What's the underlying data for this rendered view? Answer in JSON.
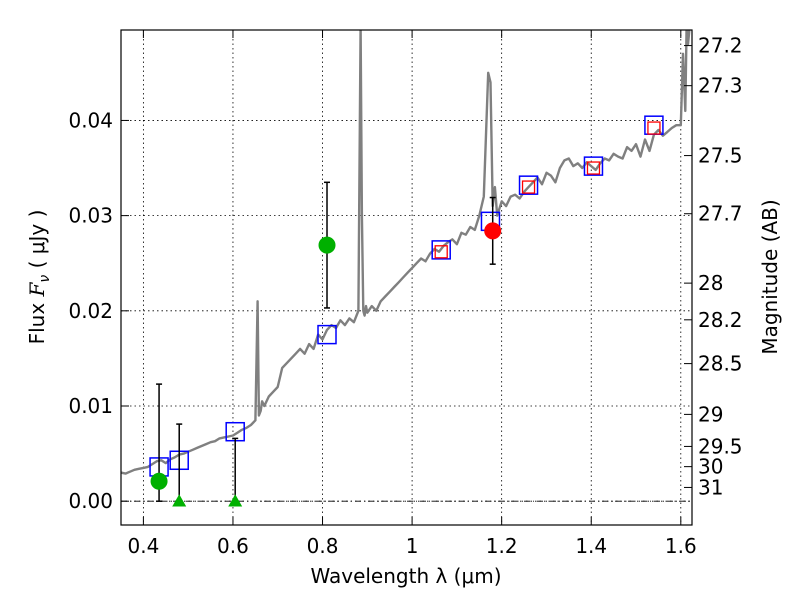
{
  "chart_data": {
    "type": "scatter",
    "title": "",
    "xlabel": "Wavelength  λ (μm)",
    "ylabel_prefix": "Flux  ",
    "ylabel_symbol": "F",
    "ylabel_sub": "ν",
    "ylabel_suffix": "  ( μJy )",
    "y2label": "Magnitude (AB)",
    "xlim": [
      0.35,
      1.625
    ],
    "ylim": [
      -0.0025,
      0.0495
    ],
    "grid": true,
    "x_ticks": [
      {
        "value": 0.4,
        "label": "0.4"
      },
      {
        "value": 0.6,
        "label": "0.6"
      },
      {
        "value": 0.8,
        "label": "0.8"
      },
      {
        "value": 1.0,
        "label": "1"
      },
      {
        "value": 1.2,
        "label": "1.2"
      },
      {
        "value": 1.4,
        "label": "1.4"
      },
      {
        "value": 1.6,
        "label": "1.6"
      }
    ],
    "y_ticks": [
      {
        "value": 0.0,
        "label": "0.00"
      },
      {
        "value": 0.01,
        "label": "0.01"
      },
      {
        "value": 0.02,
        "label": "0.02"
      },
      {
        "value": 0.03,
        "label": "0.03"
      },
      {
        "value": 0.04,
        "label": "0.04"
      }
    ],
    "magnitude_ticks": [
      {
        "mag": 27.2,
        "label": "27.2"
      },
      {
        "mag": 27.3,
        "label": "27.3"
      },
      {
        "mag": 27.5,
        "label": "27.5"
      },
      {
        "mag": 27.7,
        "label": "27.7"
      },
      {
        "mag": 28.0,
        "label": "28"
      },
      {
        "mag": 28.2,
        "label": "28.2"
      },
      {
        "mag": 28.5,
        "label": "28.5"
      },
      {
        "mag": 29.0,
        "label": "29"
      },
      {
        "mag": 29.5,
        "label": "29.5"
      },
      {
        "mag": 30.0,
        "label": "30"
      },
      {
        "mag": 31.0,
        "label": "31"
      }
    ],
    "colors": {
      "spectrum": "#808080",
      "model_squares": "#0000ff",
      "observed_squares": "#ff0000",
      "detections": "#00b000",
      "detection_red": "#ff0000",
      "error_bars": "#000000",
      "grid": "#000000",
      "zero_line": "#000000"
    },
    "series": [
      {
        "name": "spectrum",
        "type": "line",
        "x": [
          0.35,
          0.36,
          0.37,
          0.38,
          0.39,
          0.4,
          0.41,
          0.42,
          0.43,
          0.44,
          0.45,
          0.46,
          0.47,
          0.48,
          0.49,
          0.5,
          0.51,
          0.52,
          0.53,
          0.54,
          0.55,
          0.56,
          0.57,
          0.58,
          0.59,
          0.6,
          0.61,
          0.62,
          0.63,
          0.64,
          0.65,
          0.655,
          0.658,
          0.662,
          0.665,
          0.67,
          0.68,
          0.69,
          0.7,
          0.71,
          0.72,
          0.73,
          0.74,
          0.75,
          0.76,
          0.77,
          0.78,
          0.79,
          0.8,
          0.81,
          0.82,
          0.83,
          0.84,
          0.85,
          0.86,
          0.87,
          0.88,
          0.885,
          0.888,
          0.891,
          0.894,
          0.897,
          0.9,
          0.91,
          0.92,
          0.93,
          0.94,
          0.95,
          0.96,
          0.97,
          0.98,
          0.99,
          1.0,
          1.01,
          1.02,
          1.03,
          1.04,
          1.05,
          1.06,
          1.07,
          1.08,
          1.09,
          1.1,
          1.11,
          1.12,
          1.13,
          1.14,
          1.15,
          1.16,
          1.17,
          1.175,
          1.18,
          1.185,
          1.19,
          1.2,
          1.21,
          1.22,
          1.23,
          1.24,
          1.25,
          1.26,
          1.27,
          1.28,
          1.29,
          1.3,
          1.31,
          1.32,
          1.33,
          1.34,
          1.35,
          1.36,
          1.37,
          1.38,
          1.39,
          1.4,
          1.41,
          1.42,
          1.43,
          1.44,
          1.45,
          1.46,
          1.47,
          1.48,
          1.49,
          1.5,
          1.51,
          1.52,
          1.53,
          1.54,
          1.55,
          1.56,
          1.57,
          1.58,
          1.59,
          1.6,
          1.605,
          1.61,
          1.613,
          1.616,
          1.62,
          1.625
        ],
        "y": [
          0.003,
          0.0029,
          0.0031,
          0.0033,
          0.0034,
          0.0035,
          0.0036,
          0.0039,
          0.0042,
          0.0043,
          0.004,
          0.0044,
          0.0046,
          0.0049,
          0.005,
          0.0052,
          0.0054,
          0.0056,
          0.0058,
          0.006,
          0.0062,
          0.0063,
          0.0066,
          0.0067,
          0.0068,
          0.0069,
          0.0072,
          0.0075,
          0.0077,
          0.008,
          0.0085,
          0.021,
          0.009,
          0.0095,
          0.0105,
          0.01,
          0.011,
          0.0115,
          0.012,
          0.014,
          0.0145,
          0.015,
          0.0155,
          0.016,
          0.0155,
          0.0165,
          0.016,
          0.0175,
          0.017,
          0.018,
          0.0185,
          0.0182,
          0.019,
          0.0185,
          0.0192,
          0.0188,
          0.02,
          0.05,
          0.03,
          0.02,
          0.0195,
          0.0205,
          0.0198,
          0.0205,
          0.02,
          0.021,
          0.0215,
          0.022,
          0.0225,
          0.023,
          0.0235,
          0.024,
          0.0245,
          0.025,
          0.0255,
          0.0252,
          0.026,
          0.0265,
          0.0262,
          0.0268,
          0.0272,
          0.0275,
          0.027,
          0.0282,
          0.028,
          0.0288,
          0.0285,
          0.03,
          0.032,
          0.045,
          0.044,
          0.031,
          0.033,
          0.03,
          0.0315,
          0.031,
          0.032,
          0.0322,
          0.0318,
          0.0325,
          0.033,
          0.0335,
          0.034,
          0.0333,
          0.0345,
          0.0342,
          0.0335,
          0.035,
          0.0358,
          0.036,
          0.0352,
          0.0355,
          0.035,
          0.0356,
          0.0352,
          0.0348,
          0.0355,
          0.036,
          0.0358,
          0.0365,
          0.0362,
          0.036,
          0.0372,
          0.0368,
          0.0375,
          0.0362,
          0.038,
          0.0368,
          0.0385,
          0.039,
          0.0384,
          0.0388,
          0.0392,
          0.0395,
          0.0395,
          0.047,
          0.041,
          0.05,
          0.048,
          0.05,
          0.05
        ]
      },
      {
        "name": "model_photometry",
        "type": "scatter",
        "marker": "square-open",
        "x": [
          0.435,
          0.48,
          0.605,
          0.81,
          1.065,
          1.175,
          1.26,
          1.405,
          1.54
        ],
        "y": [
          0.0036,
          0.0043,
          0.0073,
          0.0175,
          0.0264,
          0.0294,
          0.0332,
          0.0352,
          0.0395
        ]
      },
      {
        "name": "observed_flux",
        "type": "scatter",
        "marker": "square-open-small",
        "x": [
          1.065,
          1.26,
          1.405,
          1.54
        ],
        "y": [
          0.0262,
          0.033,
          0.035,
          0.0392
        ]
      },
      {
        "name": "detections",
        "type": "errorbar",
        "marker": "circle",
        "x": [
          0.435,
          0.81,
          1.18
        ],
        "y": [
          0.0021,
          0.0269,
          0.0284
        ],
        "yerr_low": [
          0.0021,
          0.0066,
          0.0035
        ],
        "yerr_high": [
          0.0102,
          0.0066,
          0.0035
        ],
        "marker_colors": [
          "#00b000",
          "#00b000",
          "#ff0000"
        ]
      },
      {
        "name": "upper_limits",
        "type": "errorbar",
        "marker": "triangle",
        "x": [
          0.48,
          0.605
        ],
        "y": [
          0.0,
          0.0
        ],
        "yerr_high": [
          0.0081,
          0.0066
        ]
      }
    ]
  }
}
